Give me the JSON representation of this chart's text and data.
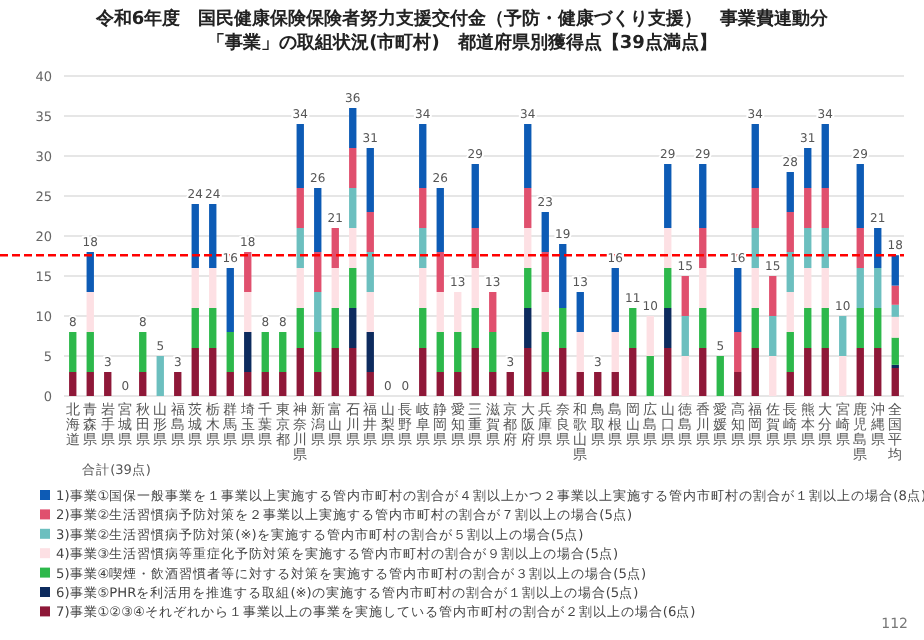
{
  "chart_data": {
    "type": "bar",
    "stacked": true,
    "title": "令和6年度　国民健康保険保険者努力支援交付金（予防・健康づくり支援）　事業費連動分",
    "subtitle": "「事業」の取組状況(市町村)　都道府県別獲得点【39点満点】",
    "xlabel": "合計(39点)",
    "categories": [
      "北海道",
      "青森県",
      "岩手県",
      "宮城県",
      "秋田県",
      "山形県",
      "福島県",
      "茨城県",
      "栃木県",
      "群馬県",
      "埼玉県",
      "千葉県",
      "東京都",
      "神奈川県",
      "新潟県",
      "富山県",
      "石川県",
      "福井県",
      "山梨県",
      "長野県",
      "岐阜県",
      "静岡県",
      "愛知県",
      "三重県",
      "滋賀県",
      "京都府",
      "大阪府",
      "兵庫県",
      "奈良県",
      "和歌山県",
      "鳥取県",
      "島根県",
      "岡山県",
      "広島県",
      "山口県",
      "徳島県",
      "香川県",
      "愛媛県",
      "高知県",
      "福岡県",
      "佐賀県",
      "長崎県",
      "熊本県",
      "大分県",
      "宮崎県",
      "鹿児島県",
      "沖縄県",
      "全国平均"
    ],
    "series": [
      {
        "name": "7)事業①②③④それぞれから１事業以上の事業を実施している管内市町村の割合が２割以上の場合(6点)",
        "color": "#8e1838",
        "values": [
          3,
          3,
          3,
          0,
          3,
          0,
          3,
          6,
          6,
          3,
          3,
          3,
          3,
          6,
          3,
          6,
          6,
          3,
          0,
          0,
          6,
          3,
          3,
          6,
          3,
          3,
          6,
          3,
          6,
          3,
          3,
          3,
          6,
          0,
          6,
          0,
          6,
          0,
          3,
          6,
          0,
          3,
          6,
          6,
          0,
          6,
          6,
          3.5
        ]
      },
      {
        "name": "6)事業⑤PHRを利活用を推進する取組(※)の実施する管内市町村の割合が１割以上の場合(5点)",
        "color": "#0d2b5e",
        "values": [
          0,
          0,
          0,
          0,
          0,
          0,
          0,
          0,
          0,
          0,
          5,
          0,
          0,
          0,
          0,
          0,
          5,
          5,
          0,
          0,
          0,
          0,
          0,
          0,
          0,
          0,
          5,
          0,
          0,
          0,
          0,
          0,
          0,
          0,
          5,
          0,
          0,
          0,
          0,
          0,
          0,
          0,
          0,
          0,
          0,
          0,
          0,
          0.4
        ]
      },
      {
        "name": "5)事業④喫煙・飲酒習慣者等に対する対策を実施する管内市町村の割合が３割以上の場合(5点)",
        "color": "#2db84b",
        "values": [
          5,
          5,
          0,
          0,
          5,
          0,
          0,
          5,
          5,
          5,
          0,
          5,
          5,
          5,
          5,
          5,
          5,
          0,
          0,
          0,
          5,
          5,
          5,
          5,
          5,
          0,
          5,
          5,
          5,
          0,
          0,
          0,
          5,
          5,
          5,
          0,
          5,
          5,
          0,
          5,
          0,
          5,
          5,
          5,
          0,
          5,
          5,
          3.4
        ]
      },
      {
        "name": "4)事業③生活習慣病等重症化予防対策を実施する管内市町村の割合が９割以上の場合(5点)",
        "color": "#fde0e4",
        "values": [
          0,
          5,
          0,
          0,
          0,
          0,
          0,
          5,
          5,
          0,
          5,
          0,
          0,
          5,
          0,
          5,
          5,
          5,
          0,
          0,
          5,
          5,
          5,
          5,
          0,
          0,
          5,
          5,
          0,
          5,
          0,
          5,
          0,
          5,
          5,
          5,
          5,
          0,
          0,
          5,
          5,
          5,
          5,
          5,
          5,
          0,
          0,
          2.6
        ]
      },
      {
        "name": "3)事業②生活習慣病予防対策(※)を実施する管内市町村の割合が５割以上の場合(5点)",
        "color": "#6cbfbf",
        "values": [
          0,
          0,
          0,
          0,
          0,
          5,
          0,
          0,
          0,
          0,
          0,
          0,
          0,
          5,
          5,
          0,
          5,
          5,
          0,
          0,
          5,
          0,
          0,
          0,
          0,
          0,
          0,
          0,
          0,
          0,
          0,
          0,
          0,
          0,
          0,
          5,
          0,
          0,
          0,
          5,
          5,
          5,
          5,
          5,
          5,
          5,
          5,
          1.5
        ]
      },
      {
        "name": "2)事業②生活習慣病予防対策を２事業以上実施する管内市町村の割合が７割以上の場合(5点)",
        "color": "#e0506e",
        "values": [
          0,
          0,
          0,
          0,
          0,
          0,
          0,
          0,
          0,
          0,
          5,
          0,
          0,
          5,
          5,
          5,
          5,
          5,
          0,
          0,
          5,
          5,
          0,
          5,
          5,
          0,
          5,
          5,
          0,
          0,
          0,
          0,
          0,
          0,
          0,
          5,
          5,
          0,
          5,
          5,
          5,
          5,
          5,
          5,
          0,
          5,
          0,
          2.4
        ]
      },
      {
        "name": "1)事業①国保一般事業を１事業以上実施する管内市町村の割合が４割以上かつ２事業以上実施する管内市町村の割合が１割以上の場合(8点)",
        "color": "#0d5bb5",
        "values": [
          0,
          5,
          0,
          0,
          0,
          0,
          0,
          8,
          8,
          8,
          0,
          0,
          0,
          8,
          8,
          0,
          5,
          8,
          0,
          0,
          8,
          8,
          0,
          8,
          0,
          0,
          8,
          5,
          8,
          5,
          0,
          8,
          0,
          0,
          8,
          0,
          8,
          0,
          8,
          8,
          0,
          5,
          5,
          8,
          0,
          8,
          5,
          3.8
        ]
      }
    ],
    "totals": [
      "8",
      "18",
      "3",
      "0",
      "8",
      "5",
      "3",
      "24",
      "24",
      "16",
      "18",
      "8",
      "8",
      "34",
      "26",
      "21",
      "36",
      "31",
      "0",
      "0",
      "34",
      "26",
      "13",
      "29",
      "13",
      "3",
      "34",
      "23",
      "19",
      "13",
      "3",
      "16",
      "11",
      "10",
      "29",
      "15",
      "29",
      "5",
      "16",
      "34",
      "15",
      "28",
      "31",
      "34",
      "10",
      "29",
      "21",
      "18"
    ],
    "ylim": [
      0,
      40
    ],
    "yticks": [
      0,
      5,
      10,
      15,
      20,
      25,
      30,
      35,
      40
    ],
    "grid": "y",
    "legend": "bottom",
    "ref_lines": [
      {
        "axis": "y",
        "value": 17.6,
        "color": "#ff0000",
        "line_style": "dashed"
      }
    ],
    "annotations": [
      "112"
    ]
  }
}
